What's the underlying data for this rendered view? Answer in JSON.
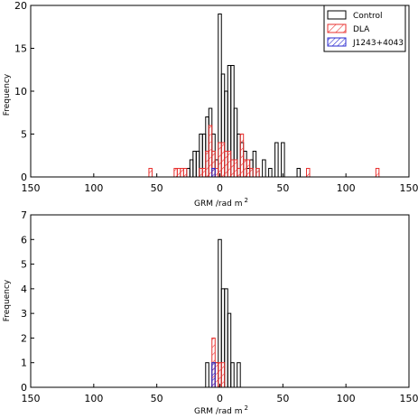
{
  "chart_data": [
    {
      "type": "histogram",
      "bin_width": 2.5,
      "xlim": [
        -150,
        150
      ],
      "ylim": [
        0,
        20
      ],
      "xticks": [
        -150,
        -100,
        -50,
        0,
        50,
        100,
        150
      ],
      "xtick_labels": [
        "150",
        "100",
        "50",
        "0",
        "50",
        "100",
        "150"
      ],
      "yticks": [
        0,
        5,
        10,
        15,
        20
      ],
      "xlabel": "GRM /rad m",
      "xlabel_sup": "2",
      "ylabel": "Frequency",
      "legend_position": "top-right",
      "series": [
        {
          "name": "Control",
          "color": "#000000",
          "style": "outline",
          "bins": [
            {
              "x": -25,
              "y": 1
            },
            {
              "x": -22.5,
              "y": 2
            },
            {
              "x": -20,
              "y": 3
            },
            {
              "x": -17.5,
              "y": 3
            },
            {
              "x": -15,
              "y": 5
            },
            {
              "x": -12.5,
              "y": 5
            },
            {
              "x": -10,
              "y": 7
            },
            {
              "x": -7.5,
              "y": 8
            },
            {
              "x": -5,
              "y": 5
            },
            {
              "x": -2.5,
              "y": 2
            },
            {
              "x": 0,
              "y": 19
            },
            {
              "x": 2.5,
              "y": 12
            },
            {
              "x": 5,
              "y": 10
            },
            {
              "x": 7.5,
              "y": 13
            },
            {
              "x": 10,
              "y": 13
            },
            {
              "x": 12.5,
              "y": 8
            },
            {
              "x": 15,
              "y": 5
            },
            {
              "x": 17.5,
              "y": 4
            },
            {
              "x": 20,
              "y": 3
            },
            {
              "x": 22.5,
              "y": 1
            },
            {
              "x": 25,
              "y": 2
            },
            {
              "x": 27.5,
              "y": 3
            },
            {
              "x": 30,
              "y": 1
            },
            {
              "x": 35,
              "y": 2
            },
            {
              "x": 40,
              "y": 1
            },
            {
              "x": 45,
              "y": 4
            },
            {
              "x": 50,
              "y": 4
            },
            {
              "x": 62.5,
              "y": 1
            }
          ]
        },
        {
          "name": "DLA",
          "color": "#e8312f",
          "style": "hatched",
          "bins": [
            {
              "x": -55,
              "y": 1
            },
            {
              "x": -35,
              "y": 1
            },
            {
              "x": -32.5,
              "y": 1
            },
            {
              "x": -30,
              "y": 1
            },
            {
              "x": -27.5,
              "y": 1
            },
            {
              "x": -15,
              "y": 1
            },
            {
              "x": -12.5,
              "y": 1
            },
            {
              "x": -10,
              "y": 3
            },
            {
              "x": -7.5,
              "y": 6
            },
            {
              "x": -5,
              "y": 3
            },
            {
              "x": -2.5,
              "y": 1
            },
            {
              "x": 0,
              "y": 4
            },
            {
              "x": 2.5,
              "y": 4
            },
            {
              "x": 5,
              "y": 3
            },
            {
              "x": 7.5,
              "y": 3
            },
            {
              "x": 10,
              "y": 2
            },
            {
              "x": 12.5,
              "y": 2
            },
            {
              "x": 15,
              "y": 1
            },
            {
              "x": 17.5,
              "y": 5
            },
            {
              "x": 20,
              "y": 2
            },
            {
              "x": 22.5,
              "y": 2
            },
            {
              "x": 25,
              "y": 1
            },
            {
              "x": 30,
              "y": 1
            },
            {
              "x": 70,
              "y": 1
            },
            {
              "x": 125,
              "y": 1
            }
          ]
        },
        {
          "name": "J1243+4043",
          "color": "#2b2bd0",
          "style": "hatched",
          "bins": [
            {
              "x": -5,
              "y": 1
            }
          ]
        }
      ]
    },
    {
      "type": "histogram",
      "bin_width": 2.5,
      "xlim": [
        -150,
        150
      ],
      "ylim": [
        0,
        7
      ],
      "xticks": [
        -150,
        -100,
        -50,
        0,
        50,
        100,
        150
      ],
      "xtick_labels": [
        "150",
        "100",
        "50",
        "0",
        "50",
        "100",
        "150"
      ],
      "yticks": [
        0,
        1,
        2,
        3,
        4,
        5,
        6,
        7
      ],
      "xlabel": "GRM /rad m",
      "xlabel_sup": "2",
      "ylabel": "Frequency",
      "series": [
        {
          "name": "Control",
          "color": "#000000",
          "style": "outline",
          "bins": [
            {
              "x": -10,
              "y": 1
            },
            {
              "x": -5,
              "y": 1
            },
            {
              "x": -2.5,
              "y": 1
            },
            {
              "x": 0,
              "y": 6
            },
            {
              "x": 2.5,
              "y": 4
            },
            {
              "x": 5,
              "y": 4
            },
            {
              "x": 7.5,
              "y": 3
            },
            {
              "x": 10,
              "y": 1
            },
            {
              "x": 15,
              "y": 1
            }
          ]
        },
        {
          "name": "DLA",
          "color": "#e8312f",
          "style": "hatched",
          "bins": [
            {
              "x": -5,
              "y": 2
            },
            {
              "x": -2.5,
              "y": 1
            },
            {
              "x": 0,
              "y": 1
            },
            {
              "x": 2.5,
              "y": 1
            }
          ]
        },
        {
          "name": "J1243+4043",
          "color": "#2b2bd0",
          "style": "hatched",
          "bins": [
            {
              "x": -5,
              "y": 1
            }
          ]
        }
      ]
    }
  ]
}
